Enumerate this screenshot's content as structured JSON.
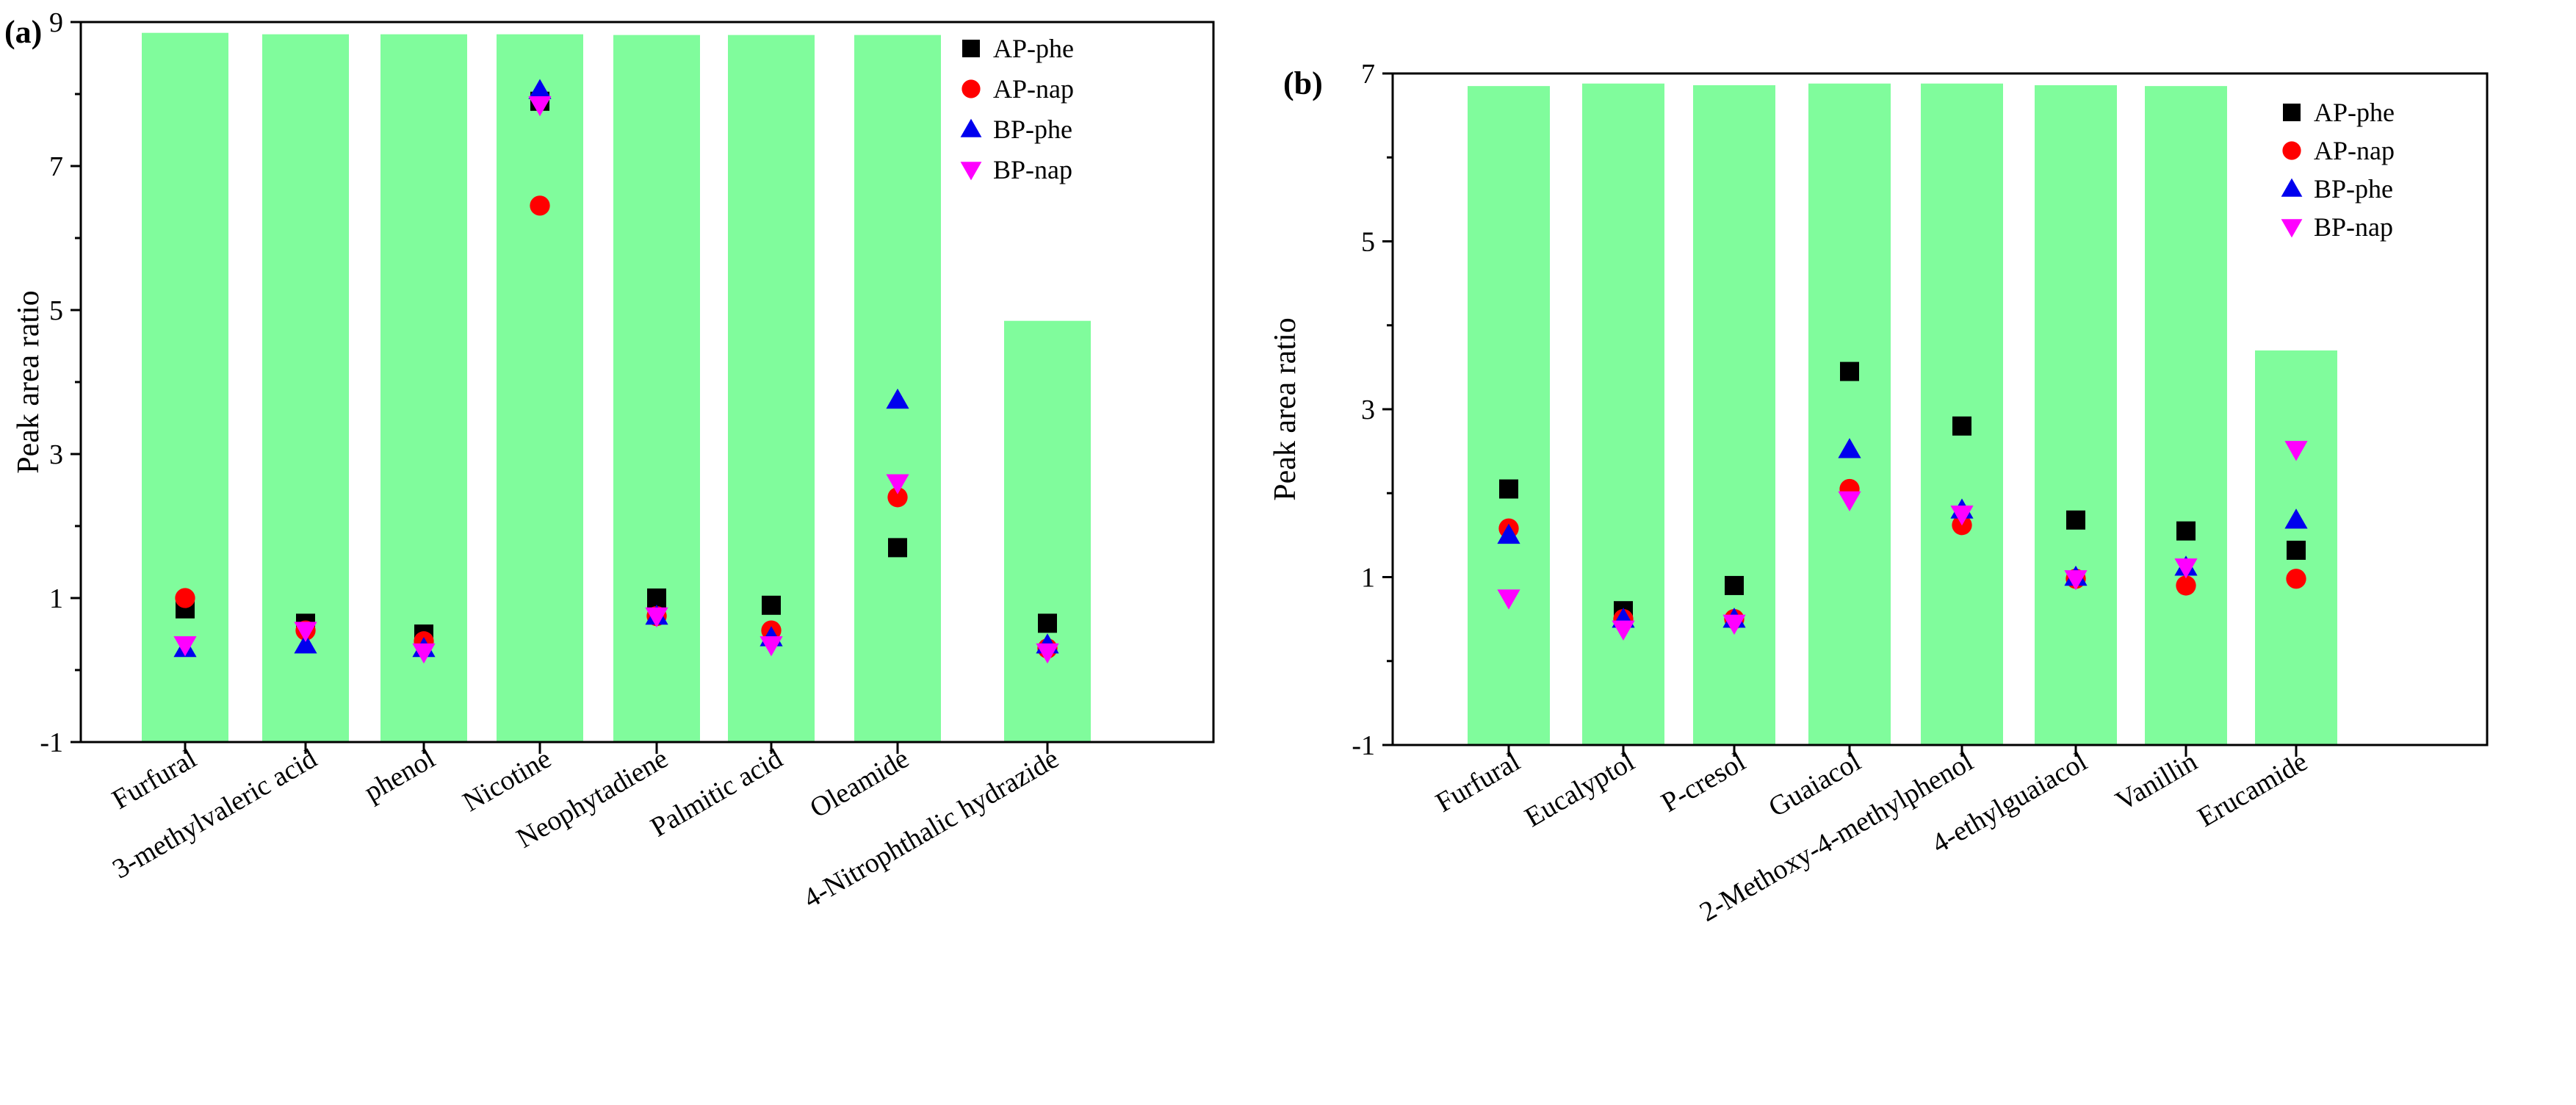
{
  "colors": {
    "bar": "#80fc9c",
    "ap_phe": "#000000",
    "ap_nap": "#ff0000",
    "bp_phe": "#0000ee",
    "bp_nap": "#ff00ff"
  },
  "chart_data": [
    {
      "type": "bar",
      "panel_label": "(a)",
      "title": "",
      "xlabel": "",
      "ylabel": "Peak area ratio",
      "ylim": [
        -1,
        9
      ],
      "yticks": [
        -1,
        1,
        3,
        5,
        7,
        9
      ],
      "ytick_labels": [
        "-1",
        "1",
        "3",
        "5",
        "7",
        "9"
      ],
      "grid": false,
      "legend_position": "top-right",
      "categories": [
        "Furfural",
        "3-methylvaleric acid",
        "phenol",
        "Nicotine",
        "Neophytadiene",
        "Palmitic acid",
        "Oleamide",
        "4-Nitrophthalic hydrazide"
      ],
      "bar_values": [
        8.85,
        8.83,
        8.83,
        8.83,
        8.82,
        8.82,
        8.82,
        4.85
      ],
      "series": [
        {
          "name": "AP-phe",
          "marker": "square",
          "values": [
            0.85,
            0.65,
            0.5,
            7.9,
            1.0,
            0.9,
            1.7,
            0.65
          ]
        },
        {
          "name": "AP-nap",
          "marker": "circle",
          "values": [
            1.0,
            0.55,
            0.4,
            6.45,
            0.75,
            0.55,
            2.4,
            0.3
          ]
        },
        {
          "name": "BP-phe",
          "marker": "triangle-up",
          "values": [
            0.3,
            0.35,
            0.3,
            8.05,
            0.75,
            0.45,
            3.75,
            0.35
          ]
        },
        {
          "name": "BP-nap",
          "marker": "triangle-down",
          "values": [
            0.35,
            0.55,
            0.25,
            7.85,
            0.75,
            0.35,
            2.6,
            0.25
          ]
        }
      ]
    },
    {
      "type": "bar",
      "panel_label": "(b)",
      "title": "",
      "xlabel": "",
      "ylabel": "Peak area ratio",
      "ylim": [
        -1,
        7
      ],
      "yticks": [
        -1,
        1,
        3,
        5,
        7
      ],
      "ytick_labels": [
        "-1",
        "1",
        "3",
        "5",
        "7"
      ],
      "grid": false,
      "legend_position": "top-right",
      "categories": [
        "Furfural",
        "Eucalyptol",
        "P-cresol",
        "Guaiacol",
        "2-Methoxy-4-methylphenol",
        "4-ethylguaiacol",
        "Vanillin",
        "Erucamide"
      ],
      "bar_values": [
        6.85,
        6.88,
        6.86,
        6.88,
        6.88,
        6.86,
        6.85,
        3.7
      ],
      "series": [
        {
          "name": "AP-phe",
          "marker": "square",
          "values": [
            2.05,
            0.6,
            0.9,
            3.45,
            2.8,
            1.68,
            1.55,
            1.32
          ]
        },
        {
          "name": "AP-nap",
          "marker": "circle",
          "values": [
            1.58,
            0.5,
            0.5,
            2.05,
            1.62,
            0.98,
            0.9,
            0.98
          ]
        },
        {
          "name": "BP-phe",
          "marker": "triangle-up",
          "values": [
            1.5,
            0.5,
            0.5,
            2.52,
            1.8,
            1.0,
            1.12,
            1.68
          ]
        },
        {
          "name": "BP-nap",
          "marker": "triangle-down",
          "values": [
            0.75,
            0.38,
            0.45,
            1.92,
            1.75,
            0.98,
            1.12,
            2.52
          ]
        }
      ]
    }
  ]
}
